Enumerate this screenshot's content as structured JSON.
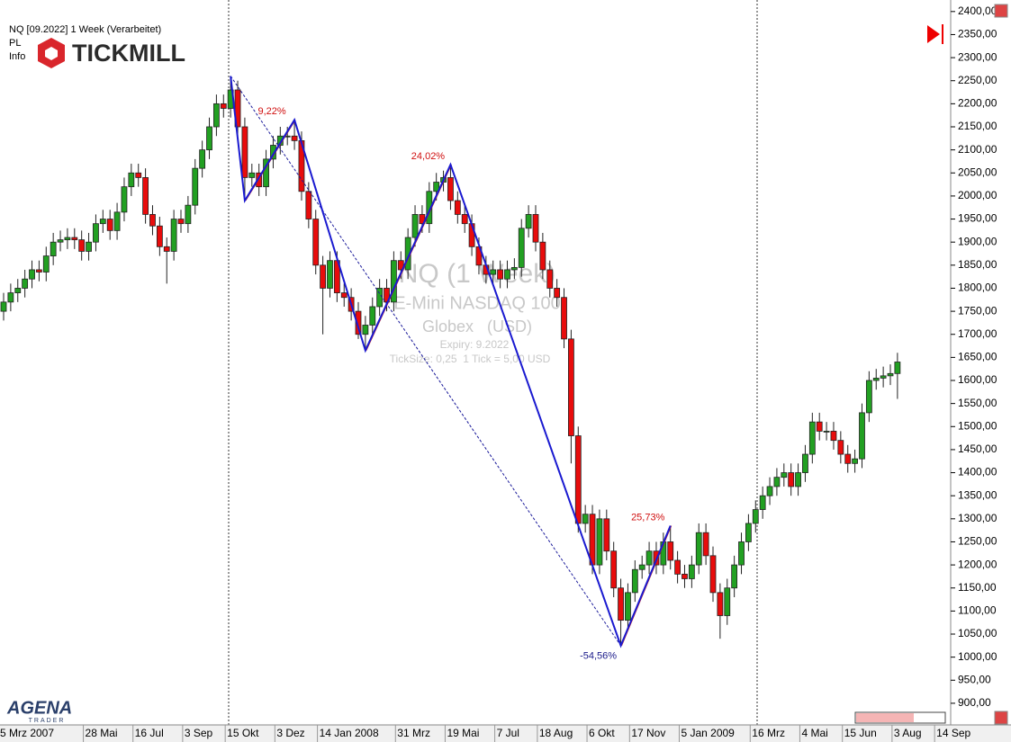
{
  "chart_data": {
    "type": "candlestick",
    "title": "NQ [09.2022] 1 Week (Verarbeitet)",
    "panel_labels": [
      "PL",
      "Info"
    ],
    "broker_logo": "TICKMILL",
    "platform_logo": [
      "AGENA",
      "TRADER"
    ],
    "watermark": [
      "NQ (1 Week)",
      "E-Mini NASDAQ 100",
      "Globex   (USD)",
      "Expiry: 9.2022",
      "TickSize: 0,25  1 Tick = 5,00 USD"
    ],
    "zigzag_labels": [
      "9,22%",
      "24,02%",
      "-54,56%",
      "25,73%"
    ],
    "up_color": "#22a022",
    "down_color": "#e80c0c",
    "zigzag_color": "#1a1ad0",
    "categories": [
      "5 Mrz 2007",
      null,
      null,
      null,
      null,
      null,
      null,
      null,
      null,
      null,
      null,
      null,
      "28 Mai",
      null,
      null,
      null,
      null,
      null,
      null,
      "16 Jul",
      null,
      null,
      null,
      null,
      null,
      null,
      "3 Sep",
      null,
      null,
      null,
      null,
      null,
      "15 Okt",
      null,
      null,
      null,
      null,
      null,
      null,
      "3 Dez",
      null,
      null,
      null,
      null,
      null,
      "14 Jan 2008",
      null,
      null,
      null,
      null,
      null,
      null,
      null,
      null,
      null,
      null,
      "31 Mrz",
      null,
      null,
      null,
      null,
      null,
      null,
      "19 Mai",
      null,
      null,
      null,
      null,
      null,
      null,
      "7 Jul",
      null,
      null,
      null,
      null,
      null,
      "18 Aug",
      null,
      null,
      null,
      null,
      null,
      null,
      "6 Okt",
      null,
      null,
      null,
      null,
      null,
      "17 Nov",
      null,
      null,
      null,
      null,
      null,
      null,
      "5 Jan 2009",
      null,
      null,
      null,
      null,
      null,
      null,
      null,
      null,
      null,
      "16 Mrz",
      null,
      null,
      null,
      null,
      null,
      null,
      "4 Mai",
      null,
      null,
      null,
      null,
      null,
      "15 Jun",
      null,
      null,
      null,
      null,
      null,
      null,
      "3 Aug",
      null,
      null,
      null,
      null,
      null,
      "14 Sep"
    ],
    "open": [
      1750,
      1770,
      1790,
      1800,
      1820,
      1840,
      1835,
      1870,
      1900,
      1905,
      1910,
      1905,
      1880,
      1900,
      1940,
      1950,
      1925,
      1965,
      2020,
      2050,
      2040,
      1960,
      1935,
      1890,
      1880,
      1950,
      1940,
      1980,
      2060,
      2100,
      2150,
      2200,
      2190,
      2230,
      2150,
      2040,
      2050,
      2020,
      2080,
      2110,
      2130,
      2130,
      2120,
      2010,
      1950,
      1850,
      1800,
      1860,
      1790,
      1780,
      1750,
      1700,
      1720,
      1760,
      1800,
      1770,
      1860,
      1840,
      1910,
      1960,
      1940,
      2010,
      2030,
      2040,
      1990,
      1960,
      1940,
      1890,
      1850,
      1830,
      1840,
      1820,
      1840,
      1845,
      1930,
      1960,
      1900,
      1840,
      1800,
      1780,
      1690,
      1480,
      1290,
      1310,
      1200,
      1300,
      1230,
      1150,
      1080,
      1140,
      1190,
      1200,
      1230,
      1200,
      1250,
      1210,
      1180,
      1170,
      1200,
      1270,
      1220,
      1140,
      1090,
      1150,
      1200,
      1250,
      1290,
      1320,
      1350,
      1370,
      1390,
      1400,
      1370,
      1400,
      1440,
      1510,
      1490,
      1490,
      1470,
      1440,
      1420,
      1430,
      1530,
      1600,
      1605,
      1610,
      1615,
      null,
      null,
      null,
      null,
      null,
      null
    ],
    "high": [
      1790,
      1810,
      1820,
      1840,
      1860,
      1860,
      1890,
      1920,
      1925,
      1930,
      1930,
      1925,
      1920,
      1960,
      1970,
      1970,
      1985,
      2040,
      2070,
      2070,
      2060,
      1980,
      1955,
      1910,
      1970,
      1970,
      2000,
      2080,
      2120,
      2170,
      2220,
      2220,
      2260,
      2250,
      2170,
      2070,
      2070,
      2100,
      2130,
      2150,
      2150,
      2165,
      2140,
      2030,
      1970,
      1870,
      1880,
      1880,
      1810,
      1800,
      1770,
      1740,
      1780,
      1820,
      1820,
      1880,
      1880,
      1930,
      1980,
      1980,
      2030,
      2050,
      2055,
      2068,
      2010,
      1980,
      1960,
      1910,
      1870,
      1860,
      1860,
      1860,
      1865,
      1950,
      1980,
      1980,
      1920,
      1860,
      1820,
      1800,
      1710,
      1500,
      1330,
      1330,
      1320,
      1320,
      1250,
      1170,
      1160,
      1210,
      1220,
      1250,
      1250,
      1270,
      1285,
      1230,
      1200,
      1220,
      1290,
      1290,
      1240,
      1160,
      1170,
      1220,
      1270,
      1310,
      1340,
      1370,
      1390,
      1410,
      1420,
      1420,
      1420,
      1460,
      1530,
      1530,
      1510,
      1510,
      1490,
      1460,
      1450,
      1550,
      1620,
      1625,
      1630,
      1635,
      1660,
      null,
      null,
      null,
      null,
      null,
      null
    ],
    "low": [
      1730,
      1750,
      1770,
      1780,
      1800,
      1815,
      1815,
      1850,
      1880,
      1885,
      1885,
      1860,
      1860,
      1880,
      1920,
      1905,
      1905,
      1945,
      2000,
      2020,
      1940,
      1915,
      1870,
      1810,
      1860,
      1920,
      1920,
      1960,
      2040,
      2080,
      2130,
      2170,
      2170,
      2130,
      1990,
      2020,
      2000,
      2000,
      2060,
      2090,
      2110,
      2100,
      1990,
      1930,
      1830,
      1700,
      1780,
      1770,
      1760,
      1730,
      1690,
      1665,
      1700,
      1740,
      1750,
      1750,
      1820,
      1820,
      1890,
      1920,
      1920,
      1990,
      2010,
      1970,
      1940,
      1920,
      1870,
      1830,
      1810,
      1810,
      1800,
      1800,
      1820,
      1825,
      1910,
      1880,
      1820,
      1780,
      1760,
      1670,
      1420,
      1270,
      1270,
      1180,
      1180,
      1210,
      1130,
      1025,
      1060,
      1120,
      1170,
      1180,
      1180,
      1180,
      1190,
      1160,
      1150,
      1150,
      1180,
      1200,
      1120,
      1040,
      1070,
      1130,
      1180,
      1230,
      1270,
      1300,
      1330,
      1350,
      1370,
      1350,
      1350,
      1380,
      1420,
      1470,
      1470,
      1450,
      1420,
      1400,
      1400,
      1410,
      1510,
      1580,
      1585,
      1590,
      1560,
      null,
      null,
      null,
      null,
      null,
      null
    ],
    "close": [
      1770,
      1790,
      1800,
      1820,
      1840,
      1835,
      1870,
      1900,
      1905,
      1910,
      1905,
      1880,
      1900,
      1940,
      1950,
      1925,
      1965,
      2020,
      2050,
      2040,
      1960,
      1935,
      1890,
      1880,
      1950,
      1940,
      1980,
      2060,
      2100,
      2150,
      2200,
      2190,
      2230,
      2150,
      2040,
      2050,
      2020,
      2080,
      2110,
      2130,
      2130,
      2120,
      2010,
      1950,
      1850,
      1800,
      1860,
      1790,
      1780,
      1750,
      1700,
      1720,
      1760,
      1800,
      1770,
      1860,
      1840,
      1910,
      1960,
      1940,
      2010,
      2030,
      2040,
      1990,
      1960,
      1940,
      1890,
      1850,
      1830,
      1840,
      1820,
      1840,
      1845,
      1930,
      1960,
      1900,
      1840,
      1800,
      1780,
      1690,
      1480,
      1290,
      1310,
      1200,
      1300,
      1230,
      1150,
      1080,
      1140,
      1190,
      1200,
      1230,
      1200,
      1250,
      1210,
      1180,
      1170,
      1200,
      1270,
      1220,
      1140,
      1090,
      1150,
      1200,
      1250,
      1290,
      1320,
      1350,
      1370,
      1390,
      1400,
      1370,
      1400,
      1440,
      1510,
      1490,
      1490,
      1470,
      1440,
      1420,
      1430,
      1530,
      1600,
      1605,
      1610,
      1615,
      1640,
      null,
      null,
      null,
      null,
      null,
      null
    ],
    "ylim": [
      855,
      2425
    ],
    "yticks": [
      {
        "value": 900,
        "label": "900,00"
      },
      {
        "value": 950,
        "label": "950,00"
      },
      {
        "value": 1000,
        "label": "1000,00"
      },
      {
        "value": 1050,
        "label": "1050,00"
      },
      {
        "value": 1100,
        "label": "1100,00"
      },
      {
        "value": 1150,
        "label": "1150,00"
      },
      {
        "value": 1200,
        "label": "1200,00"
      },
      {
        "value": 1250,
        "label": "1250,00"
      },
      {
        "value": 1300,
        "label": "1300,00"
      },
      {
        "value": 1350,
        "label": "1350,00"
      },
      {
        "value": 1400,
        "label": "1400,00"
      },
      {
        "value": 1450,
        "label": "1450,00"
      },
      {
        "value": 1500,
        "label": "1500,00"
      },
      {
        "value": 1550,
        "label": "1550,00"
      },
      {
        "value": 1600,
        "label": "1600,00"
      },
      {
        "value": 1650,
        "label": "1650,00"
      },
      {
        "value": 1700,
        "label": "1700,00"
      },
      {
        "value": 1750,
        "label": "1750,00"
      },
      {
        "value": 1800,
        "label": "1800,00"
      },
      {
        "value": 1850,
        "label": "1850,00"
      },
      {
        "value": 1900,
        "label": "1900,00"
      },
      {
        "value": 1950,
        "label": "1950,00"
      },
      {
        "value": 2000,
        "label": "2000,00"
      },
      {
        "value": 2050,
        "label": "2050,00"
      },
      {
        "value": 2100,
        "label": "2100,00"
      },
      {
        "value": 2150,
        "label": "2150,00"
      },
      {
        "value": 2200,
        "label": "2200,00"
      },
      {
        "value": 2250,
        "label": "2250,00"
      },
      {
        "value": 2300,
        "label": "2300,00"
      },
      {
        "value": 2350,
        "label": "2350,00"
      },
      {
        "value": 2400,
        "label": "2400,00"
      }
    ],
    "grid": false
  }
}
